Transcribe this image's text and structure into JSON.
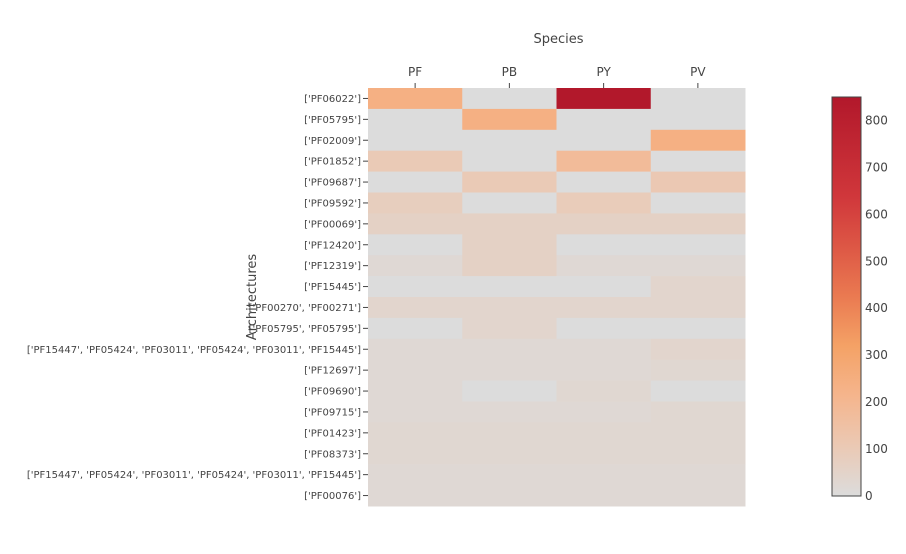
{
  "chart_data": {
    "type": "heatmap",
    "title": "",
    "xlabel": "Species",
    "ylabel": "Architectures",
    "x_categories": [
      "PF",
      "PB",
      "PY",
      "PV"
    ],
    "y_categories": [
      "['PF06022']",
      "['PF05795']",
      "['PF02009']",
      "['PF01852']",
      "['PF09687']",
      "['PF09592']",
      "['PF00069']",
      "['PF12420']",
      "['PF12319']",
      "['PF15445']",
      "['PF00270', 'PF00271']",
      "['PF05795', 'PF05795']",
      "['PF15447', 'PF05424', 'PF03011', 'PF05424', 'PF03011', 'PF15445']",
      "['PF12697']",
      "['PF09690']",
      "['PF09715']",
      "['PF01423']",
      "['PF08373']",
      "['PF15447', 'PF05424', 'PF03011', 'PF05424', 'PF03011', 'PF15445']",
      "['PF00076']"
    ],
    "z": [
      [
        240,
        0,
        850,
        0
      ],
      [
        0,
        240,
        0,
        0
      ],
      [
        0,
        0,
        0,
        240
      ],
      [
        100,
        0,
        180,
        0
      ],
      [
        0,
        100,
        0,
        110
      ],
      [
        80,
        0,
        90,
        0
      ],
      [
        60,
        60,
        60,
        60
      ],
      [
        0,
        60,
        0,
        0
      ],
      [
        20,
        60,
        20,
        20
      ],
      [
        0,
        0,
        0,
        40
      ],
      [
        40,
        40,
        40,
        40
      ],
      [
        0,
        40,
        0,
        0
      ],
      [
        20,
        20,
        20,
        40
      ],
      [
        20,
        20,
        20,
        30
      ],
      [
        20,
        0,
        30,
        0
      ],
      [
        20,
        20,
        20,
        30
      ],
      [
        30,
        30,
        30,
        30
      ],
      [
        30,
        30,
        30,
        30
      ],
      [
        20,
        20,
        20,
        20
      ],
      [
        20,
        20,
        20,
        20
      ]
    ],
    "zrange": [
      0,
      850
    ],
    "colorscale": [
      [
        0.0,
        "#dcdcdc"
      ],
      [
        0.125,
        "#ebc9b4"
      ],
      [
        0.25,
        "#f5b58d"
      ],
      [
        0.375,
        "#f4a266"
      ],
      [
        0.5,
        "#ea7a51"
      ],
      [
        0.625,
        "#dd5745"
      ],
      [
        0.75,
        "#d0373b"
      ],
      [
        1.0,
        "#b2182b"
      ]
    ],
    "colorbar_ticks": [
      0,
      100,
      200,
      300,
      400,
      500,
      600,
      700,
      800
    ],
    "grid": false,
    "colorbar_position": "right"
  }
}
